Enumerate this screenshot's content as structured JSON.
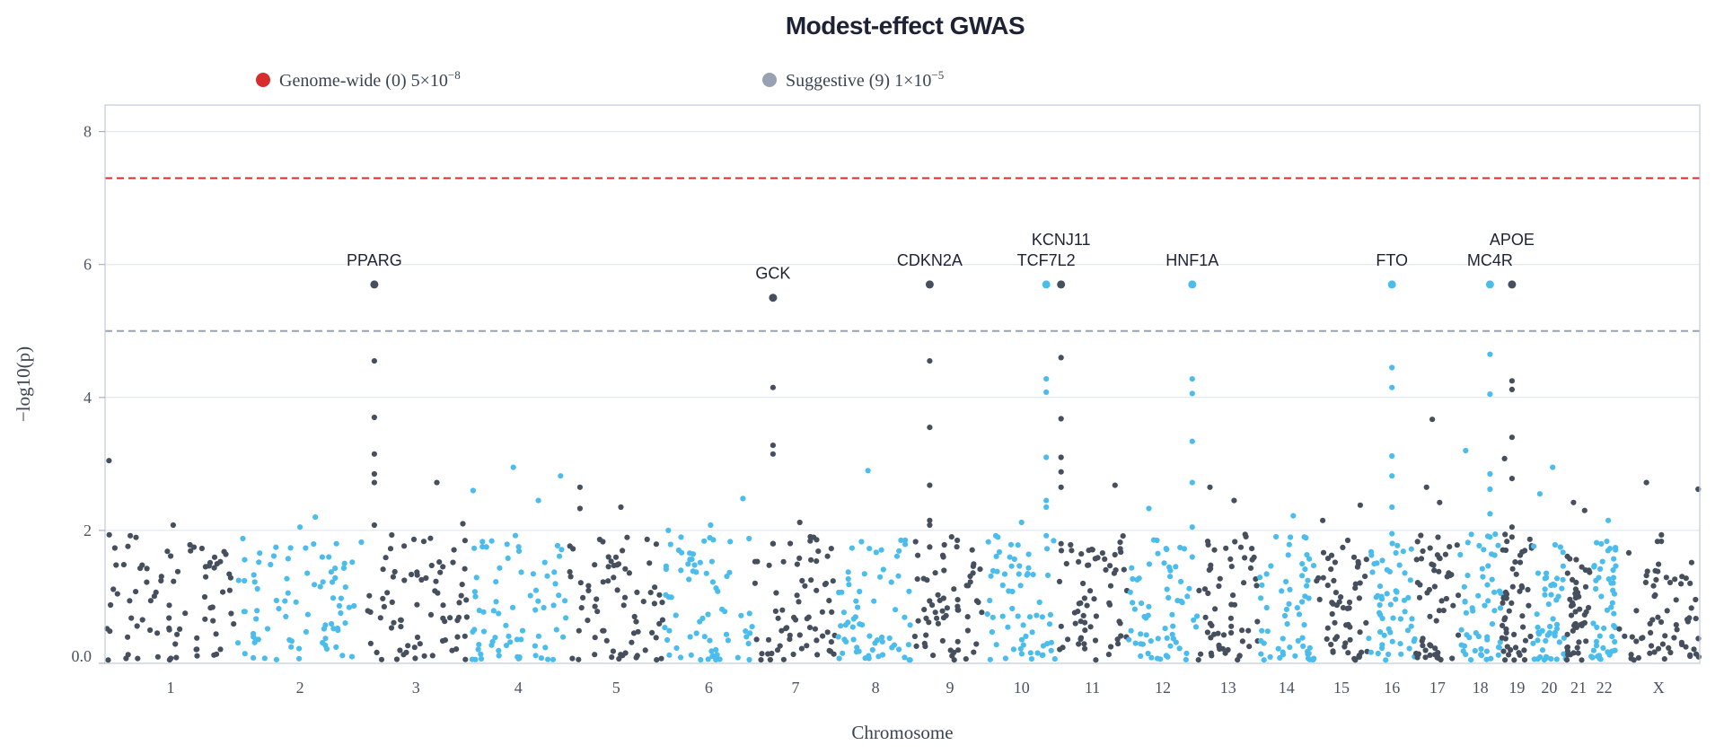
{
  "chart_data": {
    "type": "scatter",
    "title": "Modest-effect GWAS",
    "xlabel": "Chromosome",
    "ylabel": "−log10(p)",
    "ylim": [
      0,
      8.4
    ],
    "y_ticks": [
      {
        "value": 0,
        "label": "0.0"
      },
      {
        "value": 2,
        "label": "2"
      },
      {
        "value": 4,
        "label": "4"
      },
      {
        "value": 6,
        "label": "6"
      },
      {
        "value": 8,
        "label": "8"
      }
    ],
    "grid": true,
    "legend_position": "top",
    "legend": [
      {
        "label": "Genome-wide (0) 5×10",
        "sup": "−8",
        "color": "#d62d2d"
      },
      {
        "label": "Suggestive (9) 1×10",
        "sup": "−5",
        "color": "#98a2b3"
      }
    ],
    "thresholds": [
      {
        "name": "genome-wide",
        "value": 7.3,
        "color": "#d62d2d"
      },
      {
        "name": "suggestive",
        "value": 5.0,
        "color": "#98a2b3"
      }
    ],
    "chromosome_colors": [
      "#464f5e",
      "#4bbdec"
    ],
    "chromosomes": [
      {
        "name": "1",
        "size": 249,
        "color_index": 0
      },
      {
        "name": "2",
        "size": 243,
        "color_index": 1
      },
      {
        "name": "3",
        "size": 198,
        "color_index": 0
      },
      {
        "name": "4",
        "size": 191,
        "color_index": 1
      },
      {
        "name": "5",
        "size": 181,
        "color_index": 0
      },
      {
        "name": "6",
        "size": 171,
        "color_index": 1
      },
      {
        "name": "7",
        "size": 159,
        "color_index": 0
      },
      {
        "name": "8",
        "size": 145,
        "color_index": 1
      },
      {
        "name": "9",
        "size": 138,
        "color_index": 0
      },
      {
        "name": "10",
        "size": 134,
        "color_index": 1
      },
      {
        "name": "11",
        "size": 135,
        "color_index": 0
      },
      {
        "name": "12",
        "size": 133,
        "color_index": 1
      },
      {
        "name": "13",
        "size": 115,
        "color_index": 0
      },
      {
        "name": "14",
        "size": 107,
        "color_index": 1
      },
      {
        "name": "15",
        "size": 102,
        "color_index": 0
      },
      {
        "name": "16",
        "size": 90,
        "color_index": 1
      },
      {
        "name": "17",
        "size": 83,
        "color_index": 0
      },
      {
        "name": "18",
        "size": 80,
        "color_index": 1
      },
      {
        "name": "19",
        "size": 59,
        "color_index": 0
      },
      {
        "name": "20",
        "size": 64,
        "color_index": 1
      },
      {
        "name": "21",
        "size": 47,
        "color_index": 0
      },
      {
        "name": "22",
        "size": 51,
        "color_index": 1
      },
      {
        "name": "X",
        "size": 156,
        "color_index": 0
      }
    ],
    "hits": [
      {
        "gene": "PPARG",
        "chrom": "3",
        "frac": 0.1,
        "p": 5.7,
        "color_index": 0,
        "label_tier": 1,
        "tail": [
          4.55,
          3.7,
          2.85,
          2.72,
          3.15,
          2.08
        ]
      },
      {
        "gene": "GCK",
        "chrom": "7",
        "frac": 0.23,
        "p": 5.5,
        "color_index": 0,
        "label_tier": 1,
        "tail": [
          4.15,
          3.28,
          3.15,
          1.8,
          1.8,
          1.8
        ]
      },
      {
        "gene": "CDKN2A",
        "chrom": "9",
        "frac": 0.22,
        "p": 5.7,
        "color_index": 0,
        "label_tier": 1,
        "tail": [
          4.55,
          3.55,
          2.68,
          2.15,
          2.08,
          1.75
        ]
      },
      {
        "gene": "TCF7L2",
        "chrom": "10",
        "frac": 0.85,
        "p": 5.7,
        "color_index": 1,
        "label_tier": 1,
        "tail": [
          4.28,
          4.08,
          3.1,
          2.45,
          2.35,
          1.92
        ]
      },
      {
        "gene": "KCNJ11",
        "chrom": "11",
        "frac": 0.06,
        "p": 5.7,
        "color_index": 0,
        "label_tier": 2,
        "tail": [
          4.6,
          3.68,
          3.1,
          2.88,
          2.65,
          1.8
        ]
      },
      {
        "gene": "HNF1A",
        "chrom": "12",
        "frac": 0.92,
        "p": 5.7,
        "color_index": 1,
        "label_tier": 1,
        "tail": [
          4.28,
          4.06,
          3.34,
          2.72,
          2.05,
          1.6
        ]
      },
      {
        "gene": "FTO",
        "chrom": "16",
        "frac": 0.5,
        "p": 5.7,
        "color_index": 1,
        "label_tier": 1,
        "tail": [
          4.45,
          4.15,
          3.12,
          2.82,
          2.35,
          1.95
        ]
      },
      {
        "gene": "MC4R",
        "chrom": "18",
        "frac": 0.73,
        "p": 5.7,
        "color_index": 1,
        "label_tier": 1,
        "tail": [
          4.65,
          4.05,
          2.85,
          2.62,
          2.25,
          1.9
        ]
      },
      {
        "gene": "APOE",
        "chrom": "19",
        "frac": 0.34,
        "p": 5.7,
        "color_index": 0,
        "label_tier": 2,
        "tail": [
          4.25,
          4.12,
          3.4,
          2.78,
          2.05,
          1.9
        ]
      }
    ],
    "notable_points": [
      {
        "chrom": "1",
        "frac": 0.03,
        "p": 3.05
      },
      {
        "chrom": "1",
        "frac": 0.52,
        "p": 2.08
      },
      {
        "chrom": "2",
        "frac": 0.5,
        "p": 2.05
      },
      {
        "chrom": "2",
        "frac": 0.62,
        "p": 2.2
      },
      {
        "chrom": "3",
        "frac": 0.7,
        "p": 2.72
      },
      {
        "chrom": "3",
        "frac": 0.95,
        "p": 2.1
      },
      {
        "chrom": "4",
        "frac": 0.05,
        "p": 2.6
      },
      {
        "chrom": "4",
        "frac": 0.45,
        "p": 2.95
      },
      {
        "chrom": "4",
        "frac": 0.7,
        "p": 2.45
      },
      {
        "chrom": "4",
        "frac": 0.92,
        "p": 2.82
      },
      {
        "chrom": "5",
        "frac": 0.12,
        "p": 2.65
      },
      {
        "chrom": "5",
        "frac": 0.12,
        "p": 2.33
      },
      {
        "chrom": "5",
        "frac": 0.55,
        "p": 2.35
      },
      {
        "chrom": "6",
        "frac": 0.05,
        "p": 2.0
      },
      {
        "chrom": "6",
        "frac": 0.52,
        "p": 2.08
      },
      {
        "chrom": "6",
        "frac": 0.88,
        "p": 2.48
      },
      {
        "chrom": "7",
        "frac": 0.55,
        "p": 2.12
      },
      {
        "chrom": "8",
        "frac": 0.4,
        "p": 2.9
      },
      {
        "chrom": "9",
        "frac": 0.6,
        "p": 1.85
      },
      {
        "chrom": "10",
        "frac": 0.5,
        "p": 2.12
      },
      {
        "chrom": "11",
        "frac": 0.45,
        "p": 1.7
      },
      {
        "chrom": "11",
        "frac": 0.82,
        "p": 2.68
      },
      {
        "chrom": "12",
        "frac": 0.3,
        "p": 2.33
      },
      {
        "chrom": "13",
        "frac": 0.2,
        "p": 2.65
      },
      {
        "chrom": "13",
        "frac": 0.6,
        "p": 2.45
      },
      {
        "chrom": "14",
        "frac": 0.62,
        "p": 2.22
      },
      {
        "chrom": "15",
        "frac": 0.15,
        "p": 2.15
      },
      {
        "chrom": "15",
        "frac": 0.85,
        "p": 2.38
      },
      {
        "chrom": "17",
        "frac": 0.38,
        "p": 3.67
      },
      {
        "chrom": "17",
        "frac": 0.25,
        "p": 2.65
      },
      {
        "chrom": "17",
        "frac": 0.55,
        "p": 2.42
      },
      {
        "chrom": "18",
        "frac": 0.15,
        "p": 3.2
      },
      {
        "chrom": "19",
        "frac": 0.1,
        "p": 3.08
      },
      {
        "chrom": "20",
        "frac": 0.6,
        "p": 2.95
      },
      {
        "chrom": "20",
        "frac": 0.22,
        "p": 2.55
      },
      {
        "chrom": "21",
        "frac": 0.3,
        "p": 2.42
      },
      {
        "chrom": "21",
        "frac": 0.75,
        "p": 2.3
      },
      {
        "chrom": "22",
        "frac": 0.65,
        "p": 2.15
      },
      {
        "chrom": "X",
        "frac": 0.35,
        "p": 2.72
      },
      {
        "chrom": "X",
        "frac": 0.98,
        "p": 2.62
      }
    ],
    "background_points_per_chromosome": 75
  }
}
